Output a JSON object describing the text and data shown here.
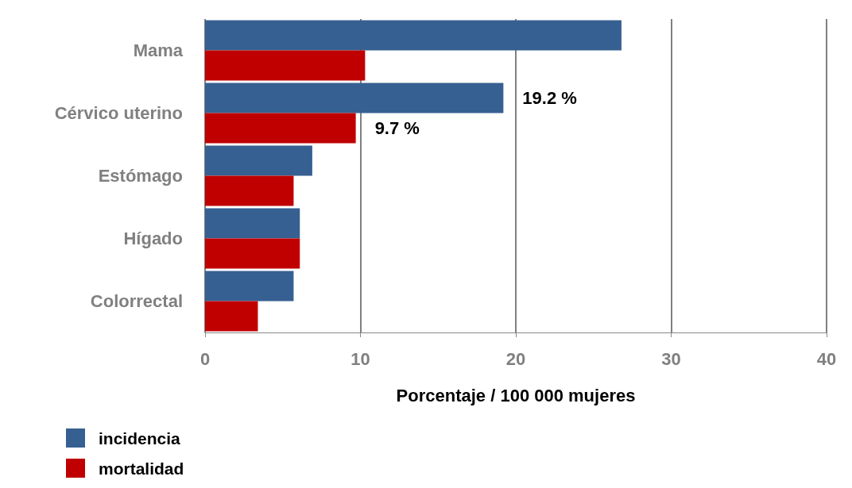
{
  "chart_data": {
    "type": "bar",
    "orientation": "horizontal",
    "xlabel": "Porcentaje / 100 000 mujeres",
    "categories": [
      "Mama",
      "Cérvico uterino",
      "Estómago",
      "Hígado",
      "Colorrectal"
    ],
    "series": [
      {
        "name": "incidencia",
        "color": "#366092",
        "values": [
          26.8,
          19.2,
          6.9,
          6.1,
          5.7
        ],
        "value_labels": [
          null,
          "19.2 %",
          null,
          null,
          null
        ]
      },
      {
        "name": "mortalidad",
        "color": "#c00000",
        "values": [
          10.3,
          9.7,
          5.7,
          6.1,
          3.4
        ],
        "value_labels": [
          null,
          "9.7 %",
          null,
          null,
          null
        ]
      }
    ],
    "xlim": [
      0,
      40
    ],
    "xticks": [
      0,
      10,
      20,
      30,
      40
    ],
    "grid": "x",
    "legend": "bottom left"
  }
}
